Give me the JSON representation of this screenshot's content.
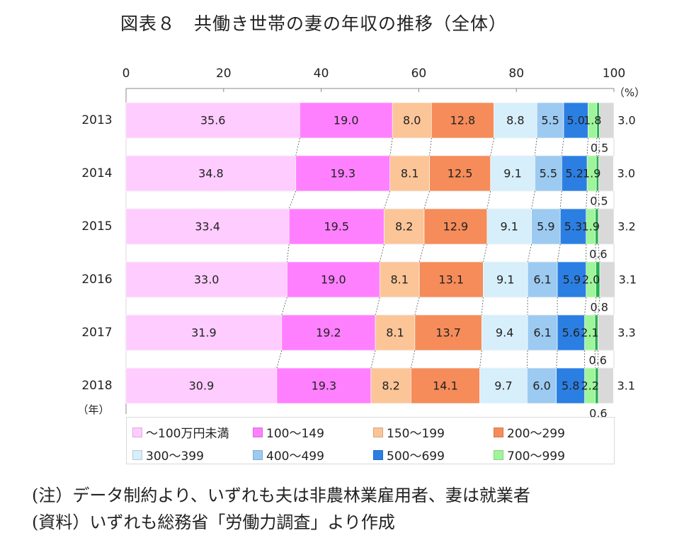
{
  "title": "図表８　共働き世帯の妻の年収の推移（全体）",
  "chart_data": {
    "type": "bar",
    "orientation": "horizontal",
    "stacked": true,
    "xlim": [
      0,
      100
    ],
    "xticks": [
      "0",
      "20",
      "40",
      "60",
      "80",
      "100"
    ],
    "unit_label": "（%）",
    "year_label": "（年）",
    "categories": [
      "2013",
      "2014",
      "2015",
      "2016",
      "2017",
      "2018"
    ],
    "series": [
      {
        "name": "～100万円未満",
        "color": "#ffccff",
        "values": [
          35.6,
          34.8,
          33.4,
          33.0,
          31.9,
          30.9
        ]
      },
      {
        "name": "100～149",
        "color": "#ff80ff",
        "values": [
          19.0,
          19.3,
          19.5,
          19.0,
          19.2,
          19.3
        ]
      },
      {
        "name": "150～199",
        "color": "#fbc598",
        "values": [
          8.0,
          8.1,
          8.2,
          8.1,
          8.1,
          8.2
        ]
      },
      {
        "name": "200～299",
        "color": "#f58c5a",
        "values": [
          12.8,
          12.5,
          12.9,
          13.1,
          13.7,
          14.1
        ]
      },
      {
        "name": "300～399",
        "color": "#d7eefb",
        "values": [
          8.8,
          9.1,
          9.1,
          9.1,
          9.4,
          9.7
        ]
      },
      {
        "name": "400～499",
        "color": "#9ccaf1",
        "values": [
          5.5,
          5.5,
          5.9,
          6.1,
          6.1,
          6.0
        ]
      },
      {
        "name": "500～699",
        "color": "#2b7fe3",
        "values": [
          5.0,
          5.2,
          5.3,
          5.9,
          5.6,
          5.8
        ]
      },
      {
        "name": "700～999",
        "color": "#9ff59a",
        "values": [
          1.8,
          1.9,
          1.9,
          2.0,
          2.1,
          2.2
        ]
      },
      {
        "color": "#22b14c",
        "values": [
          0.5,
          0.5,
          0.6,
          0.8,
          0.6,
          0.6
        ]
      },
      {
        "color": "#d9d9d9",
        "values": [
          3.0,
          3.0,
          3.2,
          3.1,
          3.3,
          3.1
        ]
      }
    ]
  },
  "legend": [
    {
      "label": "～100万円未満",
      "color": "#ffccff"
    },
    {
      "label": "100～149",
      "color": "#ff80ff"
    },
    {
      "label": "150～199",
      "color": "#fbc598"
    },
    {
      "label": "200～299",
      "color": "#f58c5a"
    },
    {
      "label": "300～399",
      "color": "#d7eefb"
    },
    {
      "label": "400～499",
      "color": "#9ccaf1"
    },
    {
      "label": "500～699",
      "color": "#2b7fe3"
    },
    {
      "label": "700～999",
      "color": "#9ff59a"
    }
  ],
  "notes": {
    "note1": "(注）データ制約より、いずれも夫は非農林業雇用者、妻は就業者",
    "note2": "(資料）いずれも総務省「労働力調査」より作成"
  }
}
